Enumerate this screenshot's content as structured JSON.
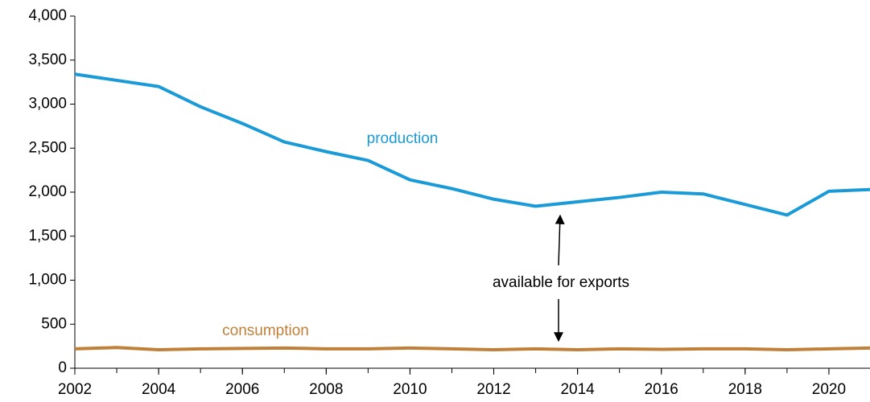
{
  "chart_data": {
    "type": "line",
    "x": [
      2002,
      2003,
      2004,
      2005,
      2006,
      2007,
      2008,
      2009,
      2010,
      2011,
      2012,
      2013,
      2014,
      2015,
      2016,
      2017,
      2018,
      2019,
      2020,
      2021
    ],
    "series": [
      {
        "name": "production",
        "color": "#1a9bd7",
        "values": [
          3340,
          3270,
          3200,
          2970,
          2780,
          2570,
          2460,
          2360,
          2140,
          2040,
          1920,
          1840,
          1890,
          1940,
          2000,
          1980,
          1860,
          1740,
          2010,
          2030
        ]
      },
      {
        "name": "consumption",
        "color": "#c0803a",
        "values": [
          220,
          235,
          210,
          220,
          225,
          230,
          220,
          220,
          230,
          220,
          210,
          220,
          210,
          220,
          215,
          220,
          220,
          210,
          220,
          230
        ]
      }
    ],
    "annotations": [
      "available for exports"
    ],
    "xlim": [
      2002,
      2021
    ],
    "xticks": [
      2002,
      2004,
      2006,
      2008,
      2010,
      2012,
      2014,
      2016,
      2018,
      2020
    ],
    "ylim": [
      0,
      4000
    ],
    "yticks": [
      0,
      500,
      {
        "value": 1000,
        "label": "1,000"
      },
      {
        "value": 1500,
        "label": "1,500"
      },
      {
        "value": 2000,
        "label": "2,000"
      },
      {
        "value": 2500,
        "label": "2,500"
      },
      {
        "value": 3000,
        "label": "3,000"
      },
      {
        "value": 3500,
        "label": "3,500"
      },
      {
        "value": 4000,
        "label": "4,000"
      }
    ],
    "grid": false
  }
}
